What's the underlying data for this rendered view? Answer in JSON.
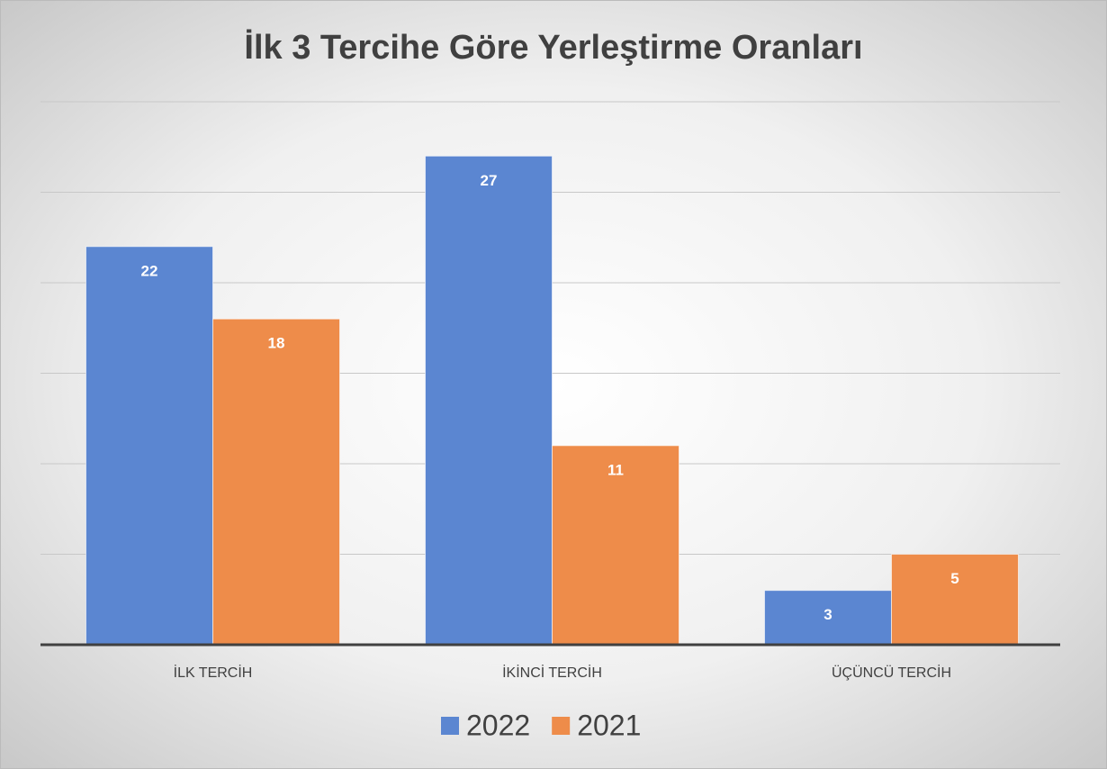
{
  "chart_data": {
    "type": "bar",
    "title": "İlk 3 Tercihe Göre Yerleştirme Oranları",
    "categories": [
      "İLK TERCİH",
      "İKİNCİ TERCİH",
      "ÜÇÜNCÜ TERCİH"
    ],
    "series": [
      {
        "name": "2022",
        "color": "#5b86d1",
        "values": [
          22,
          27,
          3
        ]
      },
      {
        "name": "2021",
        "color": "#ee8c4a",
        "values": [
          18,
          11,
          5
        ]
      }
    ],
    "ylim": [
      0,
      30
    ],
    "yticks": [
      0,
      5,
      10,
      15,
      20,
      25,
      30
    ],
    "grid": true,
    "legend": "bottom"
  }
}
